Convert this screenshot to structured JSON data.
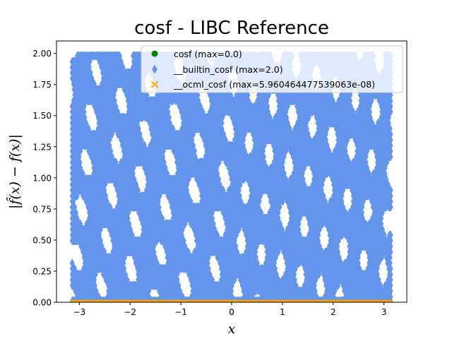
{
  "chart_data": {
    "type": "scatter",
    "title": "cosf - LIBC Reference",
    "xlabel": "x",
    "ylabel": "|f̂(x) − f(x)|",
    "xlim": [
      -3.45,
      3.45
    ],
    "ylim": [
      0.0,
      2.1
    ],
    "x_ticks": [
      -3,
      -2,
      -1,
      0,
      1,
      2,
      3
    ],
    "x_tick_labels": [
      "−3",
      "−2",
      "−1",
      "0",
      "1",
      "2",
      "3"
    ],
    "y_ticks": [
      0.0,
      0.25,
      0.5,
      0.75,
      1.0,
      1.25,
      1.5,
      1.75,
      2.0
    ],
    "y_tick_labels": [
      "0.00",
      "0.25",
      "0.50",
      "0.75",
      "1.00",
      "1.25",
      "1.50",
      "1.75",
      "2.00"
    ],
    "grid": false,
    "legend_position": "top-right",
    "x_range_sampled": [
      -3.14159,
      3.14159
    ],
    "series": [
      {
        "name": "cosf (max=0.0)",
        "marker": "circle",
        "color": "#008000",
        "max_error": 0.0
      },
      {
        "name": "__builtin_cosf (max=2.0)",
        "marker": "diamond",
        "color": "#6495ED",
        "max_error": 2.0
      },
      {
        "name": "__ocml_cosf (max=5.960464477539063e-08)",
        "marker": "x",
        "color": "#FFA500",
        "max_error": 5.960464477539063e-08
      }
    ]
  }
}
